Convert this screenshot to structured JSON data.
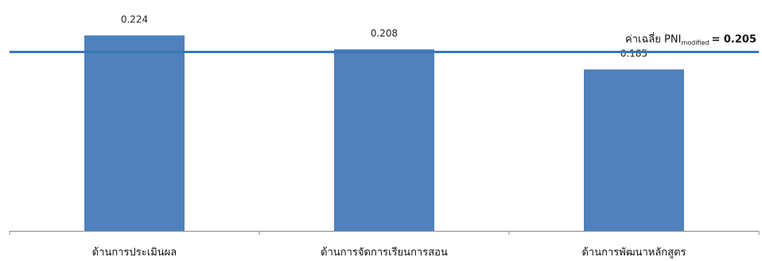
{
  "chart_data": {
    "type": "bar",
    "categories": [
      "ด้านการประเมินผล",
      "ด้านการจัดการเรียนการสอน",
      "ด้านการพัฒนาหลักสูตร"
    ],
    "values": [
      0.224,
      0.208,
      0.185
    ],
    "value_labels": [
      "0.224",
      "0.208",
      "0.185"
    ],
    "ylim": [
      0,
      0.26
    ],
    "grid": false,
    "reference_line": {
      "value": 0.205,
      "label_prefix": "ค่าเฉลี่ย PNI",
      "label_subscript": "modified",
      "label_suffix": "= 0.205"
    },
    "colors": {
      "bar": "#4f81bd",
      "reference_line": "#3a78b5",
      "axis": "#888888"
    }
  }
}
